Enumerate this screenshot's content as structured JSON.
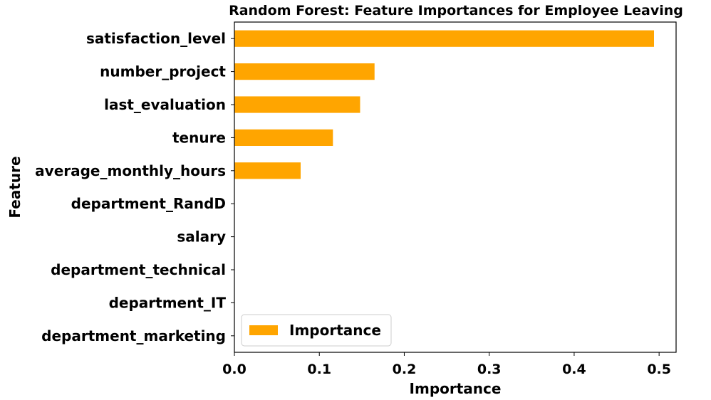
{
  "chart_data": {
    "type": "bar",
    "orientation": "horizontal",
    "title": "Random Forest: Feature Importances for Employee Leaving",
    "xlabel": "Importance",
    "ylabel": "Feature",
    "xlim": [
      0,
      0.52
    ],
    "xticks": [
      0.0,
      0.1,
      0.2,
      0.3,
      0.4,
      0.5
    ],
    "xtick_labels": [
      "0.0",
      "0.1",
      "0.2",
      "0.3",
      "0.4",
      "0.5"
    ],
    "categories": [
      "satisfaction_level",
      "number_project",
      "last_evaluation",
      "tenure",
      "average_monthly_hours",
      "department_RandD",
      "salary",
      "department_technical",
      "department_IT",
      "department_marketing"
    ],
    "series": [
      {
        "name": "Importance",
        "color": "#FFA500",
        "values": [
          0.494,
          0.165,
          0.148,
          0.116,
          0.078,
          0.0,
          0.0,
          0.0,
          0.0,
          0.0
        ]
      }
    ],
    "legend": {
      "placement": "lower-left"
    },
    "grid": false
  }
}
